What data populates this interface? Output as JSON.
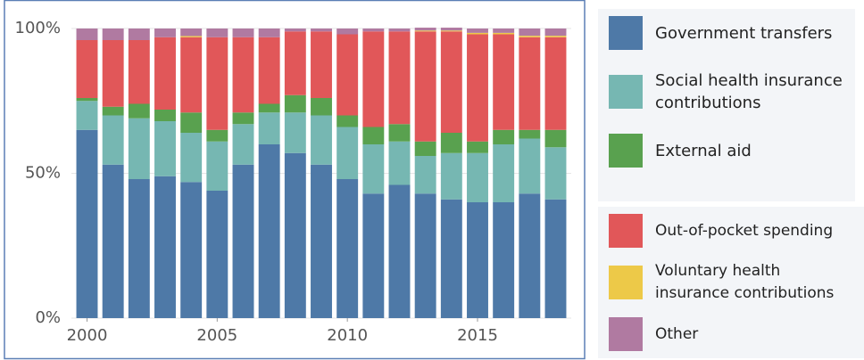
{
  "chart_data": {
    "type": "stacked_bar",
    "x": [
      2000,
      2001,
      2002,
      2003,
      2004,
      2005,
      2006,
      2007,
      2008,
      2009,
      2010,
      2011,
      2012,
      2013,
      2014,
      2015,
      2016,
      2017,
      2018
    ],
    "xlim": [
      1999.4,
      2018.6
    ],
    "xticks": [
      2000,
      2005,
      2010,
      2015
    ],
    "ylim": [
      0,
      100
    ],
    "yticks": [
      {
        "value": 0,
        "label": "0%"
      },
      {
        "value": 50,
        "label": "50%"
      },
      {
        "value": 100,
        "label": "100%"
      }
    ],
    "grid": true,
    "series": [
      {
        "name": "Government transfers",
        "color": "#4e79a7",
        "values": [
          65,
          53,
          48,
          49,
          47,
          44,
          53,
          60,
          57,
          53,
          48,
          43,
          46,
          43,
          41,
          40,
          40,
          43,
          41
        ]
      },
      {
        "name": "Social health insurance contributions",
        "color": "#76b7b2",
        "values": [
          10,
          17,
          21,
          19,
          17,
          17,
          14,
          11,
          14,
          17,
          18,
          17,
          15,
          13,
          16,
          17,
          20,
          19,
          18
        ]
      },
      {
        "name": "External aid",
        "color": "#59a14f",
        "values": [
          1,
          3,
          5,
          4,
          7,
          4,
          4,
          3,
          6,
          6,
          4,
          6,
          6,
          5,
          7,
          4,
          5,
          3,
          6
        ]
      },
      {
        "name": "Out-of-pocket spending",
        "color": "#e15759",
        "values": [
          20,
          23,
          22,
          25,
          26,
          32,
          26,
          23,
          22,
          23,
          28,
          33,
          32,
          38,
          35,
          37,
          33,
          32,
          32
        ]
      },
      {
        "name": "Voluntary health insurance contributions",
        "color": "#edc948",
        "values": [
          0,
          0,
          0,
          0,
          0.4,
          0,
          0,
          0,
          0,
          0,
          0,
          0,
          0,
          0.3,
          0.3,
          0.5,
          0.5,
          0.5,
          0.5
        ]
      },
      {
        "name": "Other",
        "color": "#b07aa1",
        "values": [
          4,
          4,
          4,
          3,
          2.6,
          3,
          3,
          3,
          1,
          1,
          2,
          1,
          1,
          1,
          1,
          1.5,
          1.5,
          2.5,
          2.5
        ]
      }
    ]
  }
}
